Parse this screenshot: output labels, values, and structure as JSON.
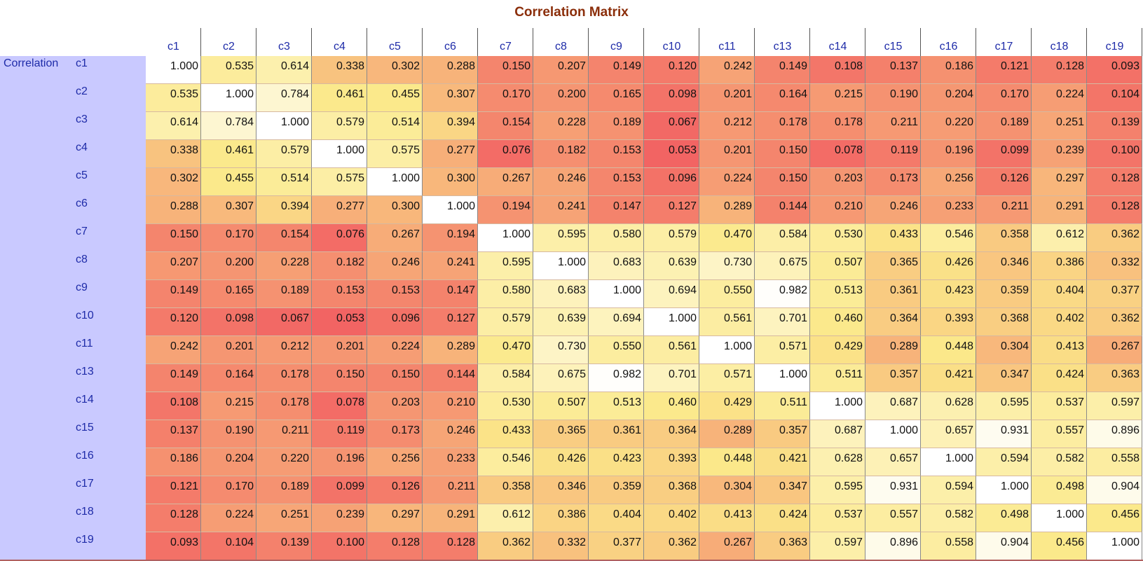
{
  "colors": {
    "title": "#8B2E0A",
    "axis_label": "#1E2BA8",
    "sidebar_bg": "#C9C9FF",
    "scale_low": "#F26363",
    "scale_mid": "#FBE98A",
    "scale_high": "#FFFFFF",
    "bottom_bar": "#B06060"
  },
  "chart_data": {
    "type": "heatmap",
    "title": "Correlation Matrix",
    "row_group_label": "Correlation",
    "columns": [
      "c1",
      "c2",
      "c3",
      "c4",
      "c5",
      "c6",
      "c7",
      "c8",
      "c9",
      "c10",
      "c11",
      "c13",
      "c14",
      "c15",
      "c16",
      "c17",
      "c18",
      "c19"
    ],
    "rows": [
      "c1",
      "c2",
      "c3",
      "c4",
      "c5",
      "c6",
      "c7",
      "c8",
      "c9",
      "c10",
      "c11",
      "c13",
      "c14",
      "c15",
      "c16",
      "c17",
      "c18",
      "c19"
    ],
    "values": [
      [
        1.0,
        0.535,
        0.614,
        0.338,
        0.302,
        0.288,
        0.15,
        0.207,
        0.149,
        0.12,
        0.242,
        0.149,
        0.108,
        0.137,
        0.186,
        0.121,
        0.128,
        0.093
      ],
      [
        0.535,
        1.0,
        0.784,
        0.461,
        0.455,
        0.307,
        0.17,
        0.2,
        0.165,
        0.098,
        0.201,
        0.164,
        0.215,
        0.19,
        0.204,
        0.17,
        0.224,
        0.104
      ],
      [
        0.614,
        0.784,
        1.0,
        0.579,
        0.514,
        0.394,
        0.154,
        0.228,
        0.189,
        0.067,
        0.212,
        0.178,
        0.178,
        0.211,
        0.22,
        0.189,
        0.251,
        0.139
      ],
      [
        0.338,
        0.461,
        0.579,
        1.0,
        0.575,
        0.277,
        0.076,
        0.182,
        0.153,
        0.053,
        0.201,
        0.15,
        0.078,
        0.119,
        0.196,
        0.099,
        0.239,
        0.1
      ],
      [
        0.302,
        0.455,
        0.514,
        0.575,
        1.0,
        0.3,
        0.267,
        0.246,
        0.153,
        0.096,
        0.224,
        0.15,
        0.203,
        0.173,
        0.256,
        0.126,
        0.297,
        0.128
      ],
      [
        0.288,
        0.307,
        0.394,
        0.277,
        0.3,
        1.0,
        0.194,
        0.241,
        0.147,
        0.127,
        0.289,
        0.144,
        0.21,
        0.246,
        0.233,
        0.211,
        0.291,
        0.128
      ],
      [
        0.15,
        0.17,
        0.154,
        0.076,
        0.267,
        0.194,
        1.0,
        0.595,
        0.58,
        0.579,
        0.47,
        0.584,
        0.53,
        0.433,
        0.546,
        0.358,
        0.612,
        0.362
      ],
      [
        0.207,
        0.2,
        0.228,
        0.182,
        0.246,
        0.241,
        0.595,
        1.0,
        0.683,
        0.639,
        0.73,
        0.675,
        0.507,
        0.365,
        0.426,
        0.346,
        0.386,
        0.332
      ],
      [
        0.149,
        0.165,
        0.189,
        0.153,
        0.153,
        0.147,
        0.58,
        0.683,
        1.0,
        0.694,
        0.55,
        0.982,
        0.513,
        0.361,
        0.423,
        0.359,
        0.404,
        0.377
      ],
      [
        0.12,
        0.098,
        0.067,
        0.053,
        0.096,
        0.127,
        0.579,
        0.639,
        0.694,
        1.0,
        0.561,
        0.701,
        0.46,
        0.364,
        0.393,
        0.368,
        0.402,
        0.362
      ],
      [
        0.242,
        0.201,
        0.212,
        0.201,
        0.224,
        0.289,
        0.47,
        0.73,
        0.55,
        0.561,
        1.0,
        0.571,
        0.429,
        0.289,
        0.448,
        0.304,
        0.413,
        0.267
      ],
      [
        0.149,
        0.164,
        0.178,
        0.15,
        0.15,
        0.144,
        0.584,
        0.675,
        0.982,
        0.701,
        0.571,
        1.0,
        0.511,
        0.357,
        0.421,
        0.347,
        0.424,
        0.363
      ],
      [
        0.108,
        0.215,
        0.178,
        0.078,
        0.203,
        0.21,
        0.53,
        0.507,
        0.513,
        0.46,
        0.429,
        0.511,
        1.0,
        0.687,
        0.628,
        0.595,
        0.537,
        0.597
      ],
      [
        0.137,
        0.19,
        0.211,
        0.119,
        0.173,
        0.246,
        0.433,
        0.365,
        0.361,
        0.364,
        0.289,
        0.357,
        0.687,
        1.0,
        0.657,
        0.931,
        0.557,
        0.896
      ],
      [
        0.186,
        0.204,
        0.22,
        0.196,
        0.256,
        0.233,
        0.546,
        0.426,
        0.423,
        0.393,
        0.448,
        0.421,
        0.628,
        0.657,
        1.0,
        0.594,
        0.582,
        0.558
      ],
      [
        0.121,
        0.17,
        0.189,
        0.099,
        0.126,
        0.211,
        0.358,
        0.346,
        0.359,
        0.368,
        0.304,
        0.347,
        0.595,
        0.931,
        0.594,
        1.0,
        0.498,
        0.904
      ],
      [
        0.128,
        0.224,
        0.251,
        0.239,
        0.297,
        0.291,
        0.612,
        0.386,
        0.404,
        0.402,
        0.413,
        0.424,
        0.537,
        0.557,
        0.582,
        0.498,
        1.0,
        0.456
      ],
      [
        0.093,
        0.104,
        0.139,
        0.1,
        0.128,
        0.128,
        0.362,
        0.332,
        0.377,
        0.362,
        0.267,
        0.363,
        0.597,
        0.896,
        0.558,
        0.904,
        0.456,
        1.0
      ]
    ]
  }
}
